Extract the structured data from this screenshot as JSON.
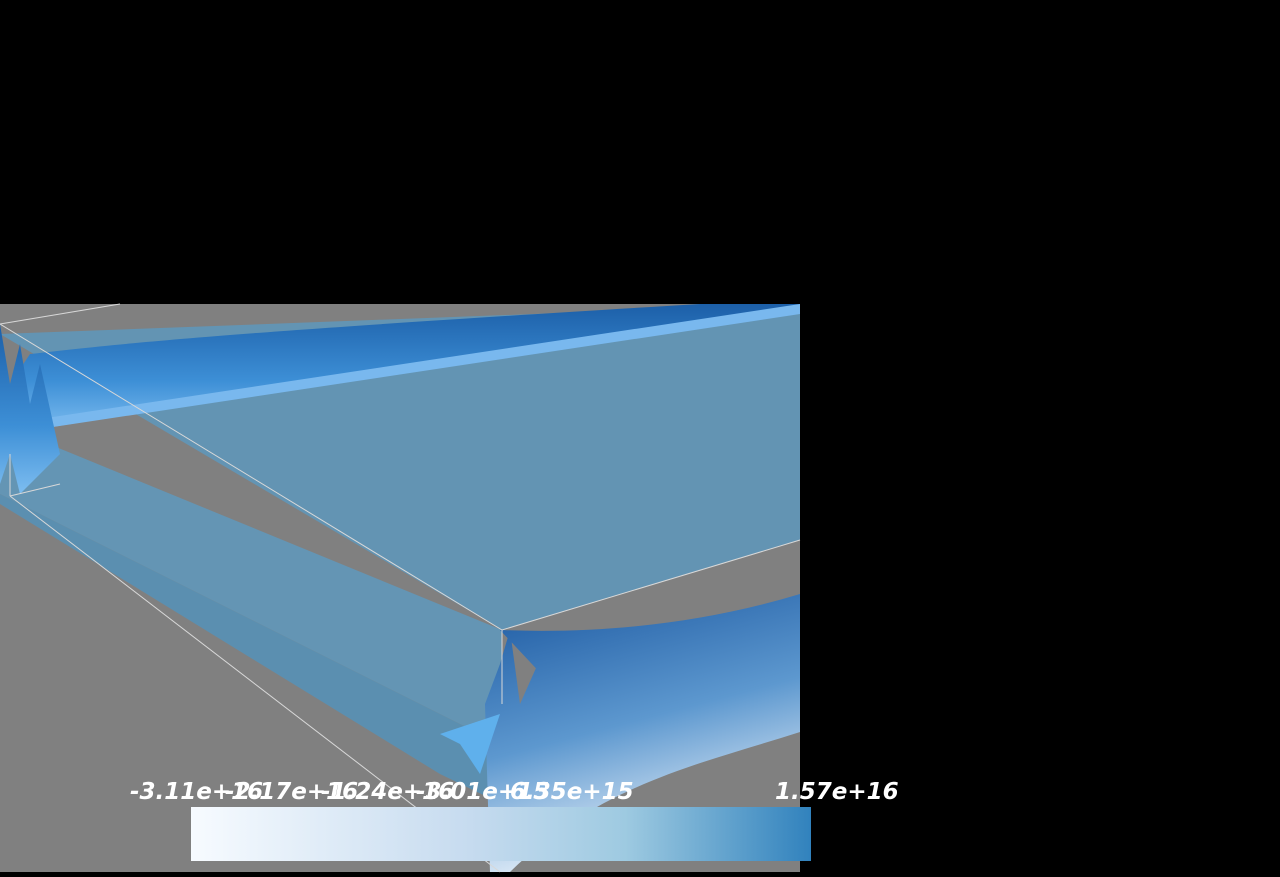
{
  "colorbar": {
    "labels": [
      "-3.11e+16",
      "-2.17e+16",
      "-1.24e+16",
      "-3.01e+15",
      "6.35e+15",
      "1.57e+16"
    ]
  }
}
